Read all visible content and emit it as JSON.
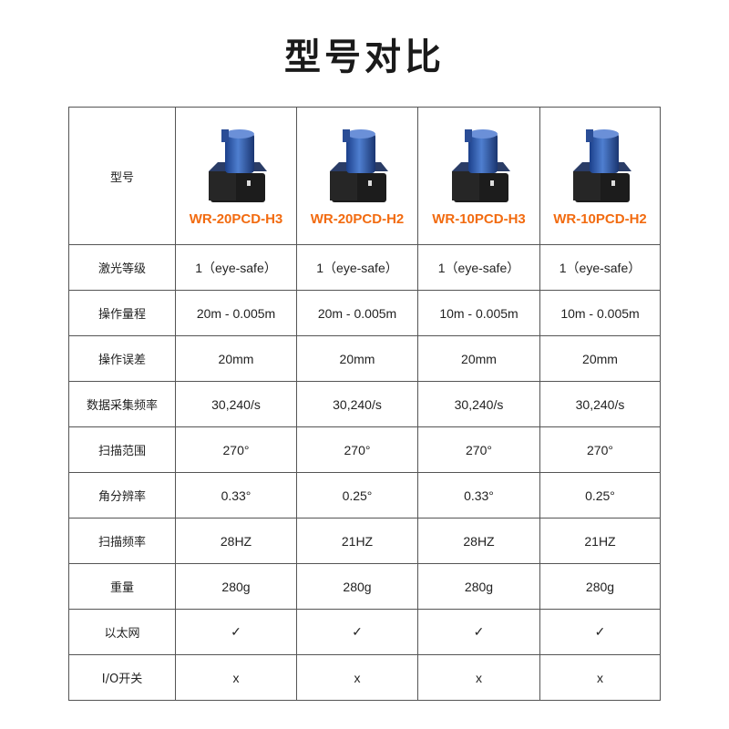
{
  "title": "型号对比",
  "header_label": "型号",
  "accent_color": "#f26b10",
  "models": [
    "WR-20PCD-H3",
    "WR-20PCD-H2",
    "WR-10PCD-H3",
    "WR-10PCD-H2"
  ],
  "rows": [
    {
      "label": "激光等级",
      "values": [
        "1（eye-safe）",
        "1（eye-safe）",
        "1（eye-safe）",
        "1（eye-safe）"
      ]
    },
    {
      "label": "操作量程",
      "values": [
        "20m - 0.005m",
        "20m - 0.005m",
        "10m - 0.005m",
        "10m - 0.005m"
      ]
    },
    {
      "label": "操作误差",
      "values": [
        "20mm",
        "20mm",
        "20mm",
        "20mm"
      ]
    },
    {
      "label": "数据采集频率",
      "values": [
        "30,240/s",
        "30,240/s",
        "30,240/s",
        "30,240/s"
      ]
    },
    {
      "label": "扫描范围",
      "values": [
        "270°",
        "270°",
        "270°",
        "270°"
      ]
    },
    {
      "label": "角分辨率",
      "values": [
        "0.33°",
        "0.25°",
        "0.33°",
        "0.25°"
      ]
    },
    {
      "label": "扫描频率",
      "values": [
        "28HZ",
        "21HZ",
        "28HZ",
        "21HZ"
      ]
    },
    {
      "label": "重量",
      "values": [
        "280g",
        "280g",
        "280g",
        "280g"
      ]
    },
    {
      "label": "以太网",
      "values": [
        "✓",
        "✓",
        "✓",
        "✓"
      ]
    },
    {
      "label": "I/O开关",
      "values": [
        "x",
        "x",
        "x",
        "x"
      ]
    }
  ]
}
